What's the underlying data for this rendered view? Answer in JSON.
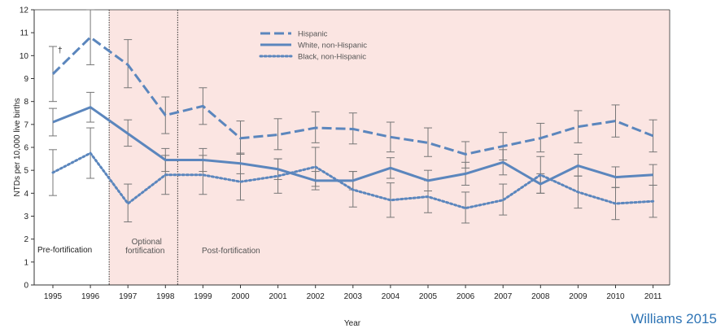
{
  "credit": "Williams 2015",
  "chart_data": {
    "type": "line",
    "xlabel": "Year",
    "ylabel": "NTDs per 10,000 live births",
    "ylim": [
      0,
      12
    ],
    "yticks": [
      0,
      1,
      2,
      3,
      4,
      5,
      6,
      7,
      8,
      9,
      10,
      11,
      12
    ],
    "categories": [
      "1995",
      "1996",
      "1997",
      "1998",
      "1999",
      "2000",
      "2001",
      "2002",
      "2003",
      "2004",
      "2005",
      "2006",
      "2007",
      "2008",
      "2009",
      "2010",
      "2011"
    ],
    "periods": [
      {
        "label": "Pre-fortification",
        "start": "1995",
        "end": "1996"
      },
      {
        "label": "Optional fortification",
        "start": "1997",
        "end": "1998"
      },
      {
        "label": "Post-fortification",
        "start": "1999",
        "end": "2011"
      }
    ],
    "annotations": [
      {
        "text": "†",
        "x": "1995",
        "series": "Hispanic"
      }
    ],
    "legend_position": "top-center",
    "grid": false,
    "series": [
      {
        "name": "Hispanic",
        "style": "dashed",
        "color": "#5b86bd",
        "values": [
          9.2,
          10.8,
          9.6,
          7.4,
          7.8,
          6.4,
          6.55,
          6.85,
          6.8,
          6.45,
          6.2,
          5.7,
          6.05,
          6.4,
          6.9,
          7.15,
          6.5
        ],
        "ci_low": [
          8.0,
          9.6,
          8.6,
          6.6,
          7.0,
          5.7,
          5.9,
          6.2,
          6.15,
          5.8,
          5.6,
          5.1,
          5.45,
          5.8,
          6.2,
          6.45,
          5.8
        ],
        "ci_high": [
          10.4,
          12.0,
          10.7,
          8.2,
          8.6,
          7.15,
          7.25,
          7.55,
          7.5,
          7.1,
          6.85,
          6.25,
          6.65,
          7.05,
          7.6,
          7.85,
          7.2
        ]
      },
      {
        "name": "White, non-Hispanic",
        "style": "solid",
        "color": "#5b86bd",
        "values": [
          7.1,
          7.75,
          6.6,
          5.45,
          5.45,
          5.3,
          5.05,
          4.55,
          4.55,
          5.1,
          4.55,
          4.85,
          5.35,
          4.4,
          5.2,
          4.7,
          4.8
        ],
        "ci_low": [
          6.5,
          7.1,
          6.05,
          4.95,
          4.95,
          4.85,
          4.6,
          4.15,
          4.15,
          4.65,
          4.1,
          4.35,
          4.8,
          4.0,
          4.75,
          4.25,
          4.35
        ],
        "ci_high": [
          7.7,
          8.4,
          7.2,
          5.95,
          5.95,
          5.75,
          5.5,
          4.95,
          4.95,
          5.55,
          5.0,
          5.35,
          5.9,
          4.85,
          5.7,
          5.15,
          5.25
        ]
      },
      {
        "name": "Black, non-Hispanic",
        "style": "dotted",
        "color": "#5b86bd",
        "values": [
          4.9,
          5.75,
          3.55,
          4.8,
          4.8,
          4.5,
          4.75,
          5.15,
          4.15,
          3.7,
          3.85,
          3.35,
          3.7,
          4.8,
          4.05,
          3.55,
          3.65
        ],
        "ci_low": [
          3.9,
          4.65,
          2.75,
          3.95,
          3.95,
          3.7,
          4.0,
          4.3,
          3.4,
          2.95,
          3.15,
          2.7,
          3.05,
          4.0,
          3.35,
          2.85,
          2.95
        ],
        "ci_high": [
          5.9,
          6.85,
          4.4,
          5.65,
          5.65,
          5.3,
          5.5,
          6.0,
          4.95,
          4.45,
          4.55,
          4.05,
          4.4,
          5.6,
          4.75,
          4.25,
          4.35
        ]
      }
    ]
  }
}
